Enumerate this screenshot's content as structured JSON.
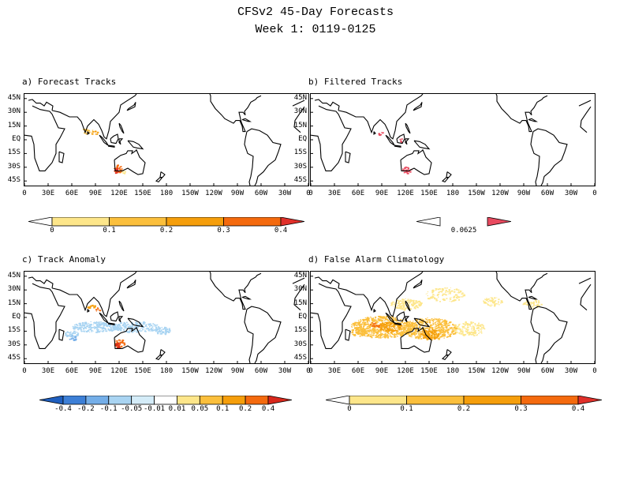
{
  "header": {
    "title": "CFSv2 45-Day Forecasts",
    "subtitle": "Week 1: 0119-0125"
  },
  "axes": {
    "lat_labels": [
      "45N",
      "30N",
      "15N",
      "EQ",
      "15S",
      "30S",
      "45S"
    ],
    "lon_labels": [
      "0",
      "30E",
      "60E",
      "90E",
      "120E",
      "150E",
      "180",
      "150W",
      "120W",
      "90W",
      "60W",
      "30W",
      "0"
    ]
  },
  "panels": [
    {
      "id": "a",
      "title": "a) Forecast Tracks"
    },
    {
      "id": "b",
      "title": "b) Filtered Tracks"
    },
    {
      "id": "c",
      "title": "c) Track Anomaly"
    },
    {
      "id": "d",
      "title": "d) False Alarm Climatology"
    }
  ],
  "colorbars": {
    "a": {
      "labels": [
        "0",
        "0.1",
        "0.2",
        "0.3",
        "0.4"
      ],
      "colors": [
        "#ffffff",
        "#fde68a",
        "#fbbf3c",
        "#f59e0b",
        "#f46a0e",
        "#e0302a"
      ]
    },
    "b": {
      "labels": [
        "0.0625"
      ],
      "colors": [
        "#ffffff",
        "#e84a5f"
      ]
    },
    "c": {
      "labels": [
        "-0.4",
        "-0.2",
        "-0.1",
        "-0.05",
        "-0.01",
        "0.01",
        "0.05",
        "0.1",
        "0.2",
        "0.4"
      ],
      "colors": [
        "#1f5fbf",
        "#3d7fd6",
        "#74aee8",
        "#a9d4f2",
        "#d4ecf8",
        "#ffffff",
        "#fde68a",
        "#fbbf3c",
        "#f59e0b",
        "#f46a0e",
        "#d8281c"
      ]
    },
    "d": {
      "labels": [
        "0",
        "0.1",
        "0.2",
        "0.3",
        "0.4"
      ],
      "colors": [
        "#ffffff",
        "#fde68a",
        "#fbbf3c",
        "#f59e0b",
        "#f46a0e",
        "#e0302a"
      ]
    }
  }
}
